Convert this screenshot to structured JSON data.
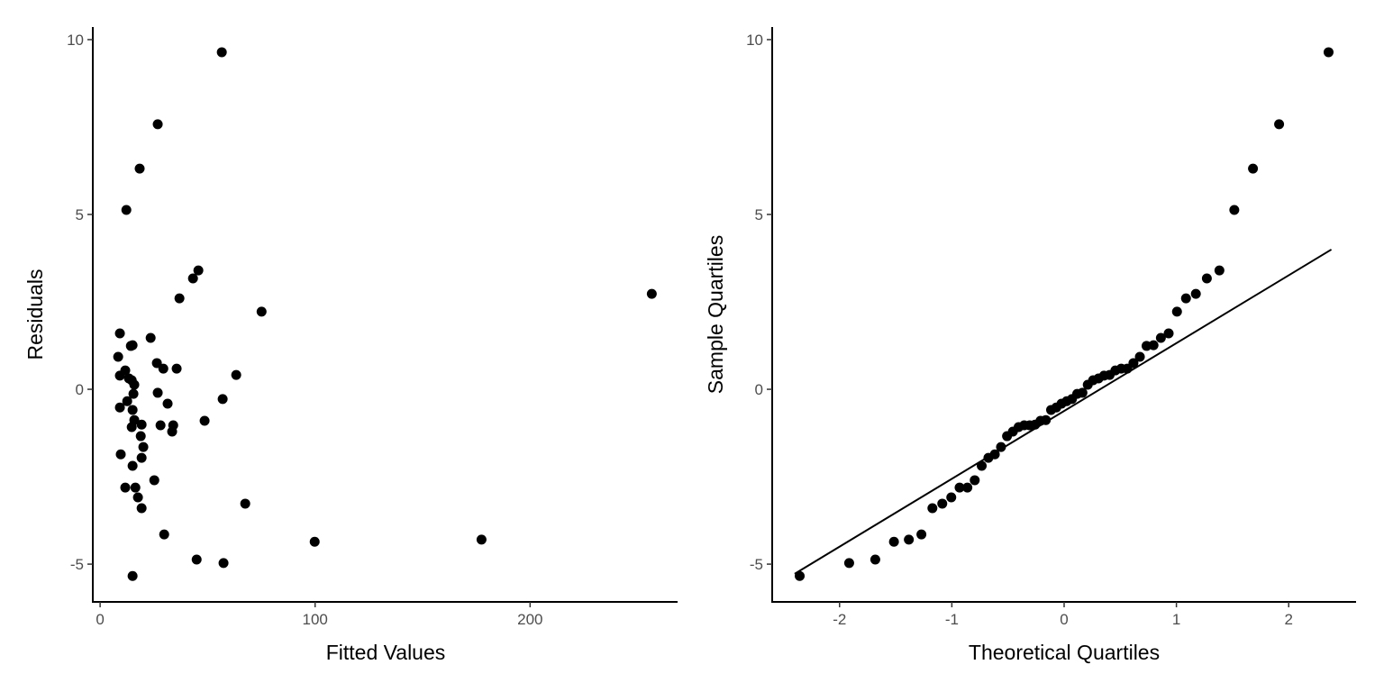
{
  "chart_data": [
    {
      "type": "scatter",
      "title": "",
      "xlabel": "Fitted Values",
      "ylabel": "Residuals",
      "xlim": [
        -3.4,
        268.6
      ],
      "ylim": [
        -6.08,
        10.36
      ],
      "xticks": [
        0,
        100,
        200
      ],
      "xtick_labels": [
        "0",
        "100",
        "200"
      ],
      "yticks": [
        -5,
        0,
        5,
        10
      ],
      "ytick_labels": [
        "-5",
        "0",
        "5",
        "10"
      ],
      "grid": false,
      "points": [
        [
          56.6,
          9.64
        ],
        [
          26.8,
          7.58
        ],
        [
          18.4,
          6.31
        ],
        [
          12.2,
          5.13
        ],
        [
          45.7,
          3.4
        ],
        [
          43.2,
          3.17
        ],
        [
          36.9,
          2.6
        ],
        [
          75.1,
          2.22
        ],
        [
          256.6,
          2.73
        ],
        [
          9.2,
          1.6
        ],
        [
          23.5,
          1.47
        ],
        [
          15.1,
          1.26
        ],
        [
          14.3,
          1.24
        ],
        [
          8.4,
          0.93
        ],
        [
          26.4,
          0.75
        ],
        [
          29.4,
          0.59
        ],
        [
          35.6,
          0.59
        ],
        [
          11.7,
          0.54
        ],
        [
          13.4,
          0.31
        ],
        [
          9.2,
          0.39
        ],
        [
          14.7,
          0.26
        ],
        [
          15.5,
          -0.13
        ],
        [
          63.3,
          0.41
        ],
        [
          15.9,
          0.13
        ],
        [
          26.8,
          -0.1
        ],
        [
          57.0,
          -0.28
        ],
        [
          31.4,
          -0.41
        ],
        [
          12.6,
          -0.34
        ],
        [
          9.2,
          -0.52
        ],
        [
          15.1,
          -0.59
        ],
        [
          15.9,
          -0.88
        ],
        [
          28.1,
          -1.03
        ],
        [
          19.3,
          -1.01
        ],
        [
          34.0,
          -1.03
        ],
        [
          48.6,
          -0.9
        ],
        [
          14.7,
          -1.08
        ],
        [
          33.5,
          -1.21
        ],
        [
          18.9,
          -1.34
        ],
        [
          20.1,
          -1.65
        ],
        [
          9.6,
          -1.86
        ],
        [
          19.3,
          -1.96
        ],
        [
          15.1,
          -2.19
        ],
        [
          25.2,
          -2.6
        ],
        [
          11.7,
          -2.81
        ],
        [
          16.4,
          -2.81
        ],
        [
          17.6,
          -3.09
        ],
        [
          67.5,
          -3.27
        ],
        [
          19.3,
          -3.4
        ],
        [
          29.8,
          -4.15
        ],
        [
          99.8,
          -4.36
        ],
        [
          177.4,
          -4.3
        ],
        [
          44.9,
          -4.87
        ],
        [
          57.4,
          -4.97
        ],
        [
          15.1,
          -5.34
        ]
      ]
    },
    {
      "type": "scatter",
      "title": "",
      "xlabel": "Theoretical Quartiles",
      "ylabel": "Sample Quartiles",
      "xlim": [
        -2.6,
        2.6
      ],
      "ylim": [
        -6.08,
        10.36
      ],
      "xticks": [
        -2,
        -1,
        0,
        1,
        2
      ],
      "xtick_labels": [
        "-2",
        "-1",
        "0",
        "1",
        "2"
      ],
      "yticks": [
        -5,
        0,
        5,
        10
      ],
      "ytick_labels": [
        "-5",
        "0",
        "5",
        "10"
      ],
      "grid": false,
      "points_source": "sorted residuals of first panel vs normal quantiles",
      "reference_line": {
        "intercept": -0.62,
        "slope": 1.94,
        "x_range": [
          -2.4,
          2.38
        ]
      }
    }
  ]
}
